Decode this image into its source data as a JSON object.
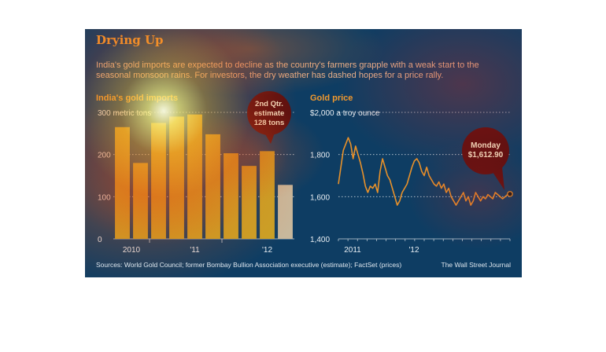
{
  "title": "Drying Up",
  "subtitle": "India's gold imports are expected to decline as the country's farmers grapple with a weak start to the seasonal monsoon rains. For investors, the dry weather has dashed hopes for a price rally.",
  "footer": {
    "sources": "Sources: World Gold Council; former Bombay Bullion Association executive (estimate); FactSet (prices)",
    "brand": "The Wall Street Journal"
  },
  "colors": {
    "background": "#0e3d63",
    "bar": "#c9a227",
    "estimate_bar": "#c8b89c",
    "line": "#e8912a",
    "accent": "#f29a2e"
  },
  "chart_data": [
    {
      "type": "bar",
      "title": "India's gold imports",
      "ylabel": "300 metric tons",
      "ylim": [
        0,
        300
      ],
      "yticks": [
        "0",
        "100",
        "200",
        "300 metric tons"
      ],
      "xtick_labels": [
        "2010",
        "'11",
        "'12"
      ],
      "values": [
        265,
        180,
        275,
        290,
        295,
        248,
        203,
        173,
        208,
        128
      ],
      "callout": [
        "2nd Qtr.",
        "estimate",
        "128 tons"
      ],
      "grid": true
    },
    {
      "type": "line",
      "title": "Gold price",
      "ylabel": "$2,000 a troy ounce",
      "ylim": [
        1400,
        2000
      ],
      "yticks": [
        "1,400",
        "1,600",
        "1,800",
        "$2,000 a troy ounce"
      ],
      "xtick_labels": [
        "2011",
        "'12"
      ],
      "x": [
        0,
        2,
        4,
        5,
        6,
        7,
        8,
        9,
        10,
        11,
        12,
        13,
        14,
        15,
        16,
        17,
        18,
        19,
        20,
        21,
        22,
        23,
        24,
        25,
        26,
        27,
        28,
        29,
        30,
        31,
        32,
        33,
        34,
        35,
        36,
        37,
        38,
        39,
        40,
        41,
        42,
        43,
        44,
        45,
        46,
        47,
        48,
        49,
        50,
        51,
        52,
        53,
        54,
        55,
        56,
        57,
        58,
        59,
        60,
        61,
        62,
        63,
        64,
        65,
        66,
        67,
        68,
        69,
        70
      ],
      "y": [
        1660,
        1820,
        1880,
        1850,
        1780,
        1840,
        1800,
        1760,
        1710,
        1650,
        1620,
        1650,
        1640,
        1660,
        1620,
        1720,
        1780,
        1740,
        1700,
        1680,
        1640,
        1600,
        1560,
        1580,
        1620,
        1640,
        1660,
        1700,
        1740,
        1770,
        1780,
        1760,
        1720,
        1700,
        1740,
        1700,
        1680,
        1660,
        1650,
        1670,
        1640,
        1660,
        1620,
        1640,
        1600,
        1580,
        1560,
        1580,
        1600,
        1620,
        1580,
        1600,
        1560,
        1580,
        1620,
        1600,
        1580,
        1600,
        1590,
        1610,
        1600,
        1590,
        1620,
        1610,
        1600,
        1590,
        1600,
        1610,
        1612.9
      ],
      "callout": [
        "Monday",
        "$1,612.90"
      ],
      "grid": true
    }
  ]
}
